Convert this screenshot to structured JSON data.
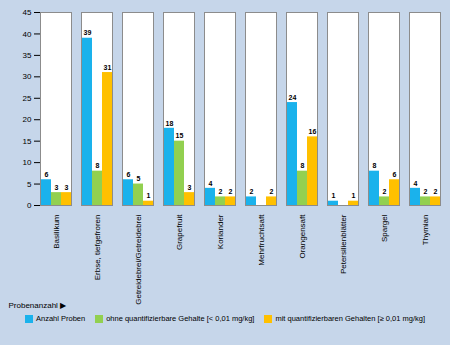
{
  "chart_data": {
    "type": "bar",
    "categories": [
      "Basilikum",
      "Erbse, tiefgefroren",
      "Getreidebrei/Getreidebrei",
      "Grapefruit",
      "Koriander",
      "Mehrfruchtsaft",
      "Orangensaft",
      "Petersilienblätter",
      "Spargel",
      "Thymian"
    ],
    "series": [
      {
        "name": "Anzahl Proben",
        "color": "#1ab2ec",
        "values": [
          6,
          39,
          6,
          18,
          4,
          2,
          24,
          1,
          8,
          4
        ]
      },
      {
        "name": "ohne quantifizierbare Gehalte [< 0,01 mg/kg]",
        "color": "#92d050",
        "values": [
          3,
          8,
          5,
          15,
          2,
          null,
          8,
          null,
          2,
          2
        ]
      },
      {
        "name": "mit quantifizierbaren Gehalten [≥ 0,01 mg/kg]",
        "color": "#ffc000",
        "values": [
          3,
          31,
          1,
          3,
          2,
          2,
          16,
          1,
          6,
          2
        ]
      }
    ],
    "y_label": "Probenanzahl ▶",
    "ylim": [
      0,
      45
    ],
    "yticks": [
      0,
      5,
      10,
      15,
      20,
      25,
      30,
      35,
      40,
      45
    ],
    "grid": false,
    "data_labels": true,
    "legend": "bottom"
  }
}
